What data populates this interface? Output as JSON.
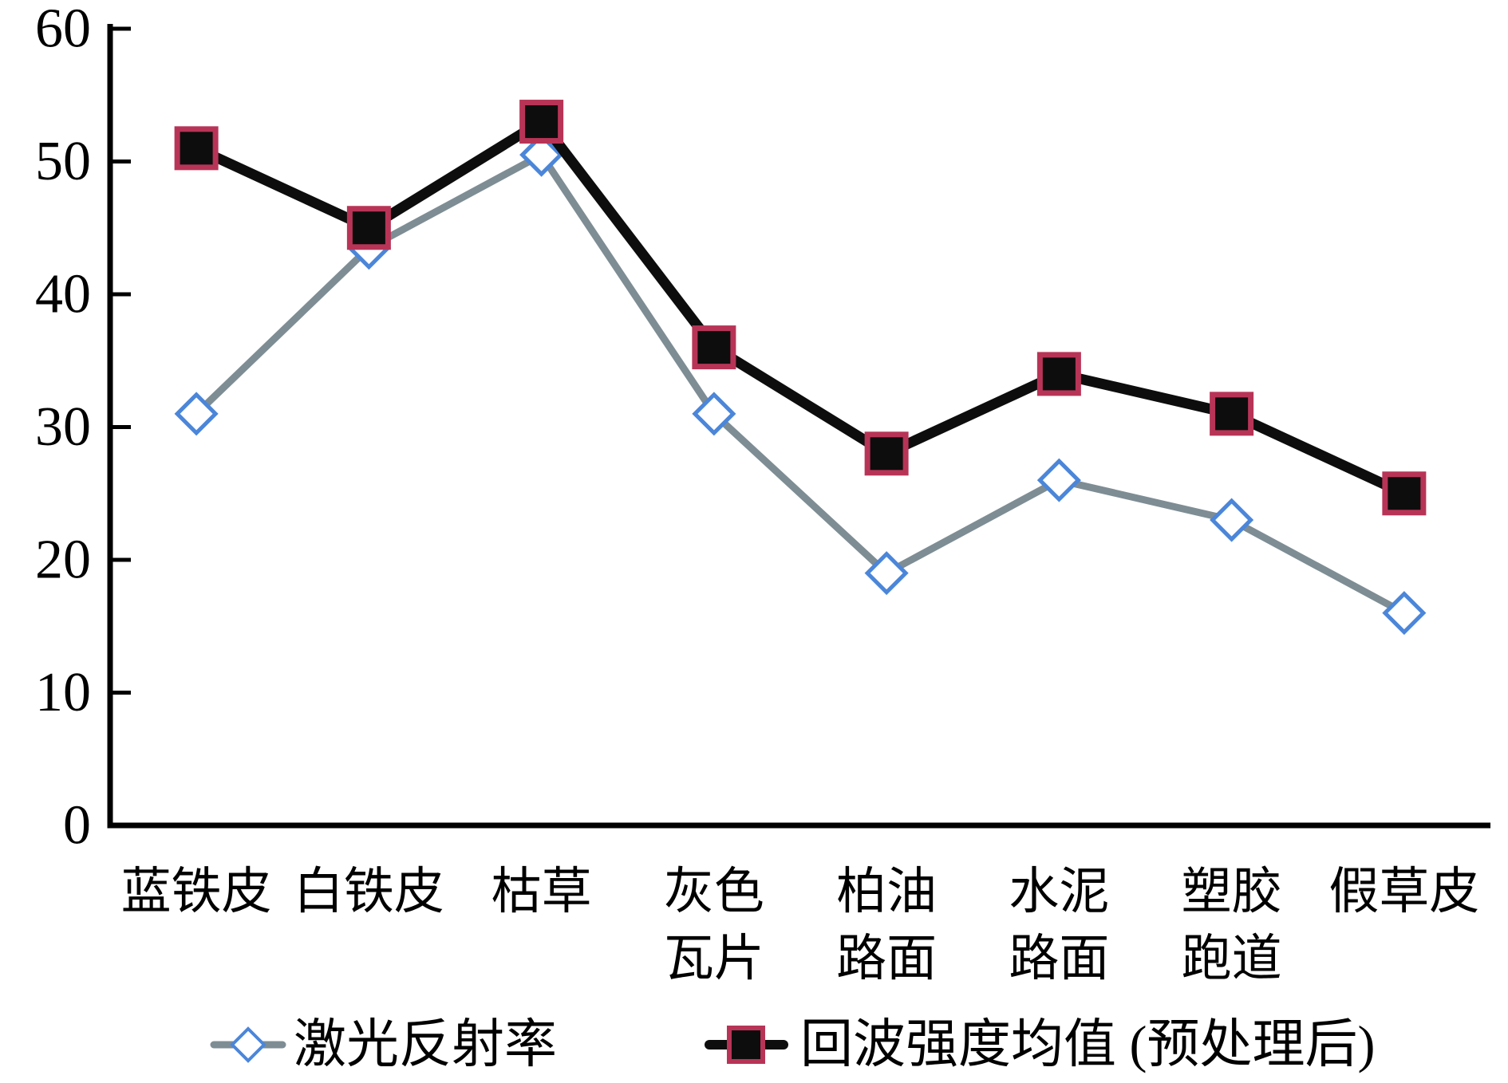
{
  "chart_data": {
    "type": "line",
    "title": "",
    "xlabel": "",
    "ylabel": "",
    "ylim": [
      0,
      60
    ],
    "y_ticks": [
      0,
      10,
      20,
      30,
      40,
      50,
      60
    ],
    "grid": false,
    "legend_position": "bottom",
    "categories": [
      "蓝铁皮",
      "白铁皮",
      "枯草",
      "灰色瓦片",
      "柏油路面",
      "水泥路面",
      "塑胶跑道",
      "假草皮"
    ],
    "categories_display": [
      [
        "蓝铁皮"
      ],
      [
        "白铁皮"
      ],
      [
        "枯草"
      ],
      [
        "灰色",
        "瓦片"
      ],
      [
        "柏油",
        "路面"
      ],
      [
        "水泥",
        "路面"
      ],
      [
        "塑胶",
        "跑道"
      ],
      [
        "假草皮"
      ]
    ],
    "series": [
      {
        "name": "激光反射率",
        "values": [
          31,
          43.5,
          50.5,
          31,
          19,
          26,
          23,
          16
        ],
        "marker": "diamond",
        "line_color": "#7e8d94",
        "marker_fill": "#ffffff",
        "marker_stroke": "#4b86d9"
      },
      {
        "name": "回波强度均值 (预处理后)",
        "values": [
          51,
          45,
          53,
          36,
          28,
          34,
          31,
          25
        ],
        "marker": "square",
        "line_color": "#0d0d0d",
        "marker_fill": "#0d0d0d",
        "marker_stroke": "#b83457"
      }
    ],
    "axis_color": "#000000"
  }
}
